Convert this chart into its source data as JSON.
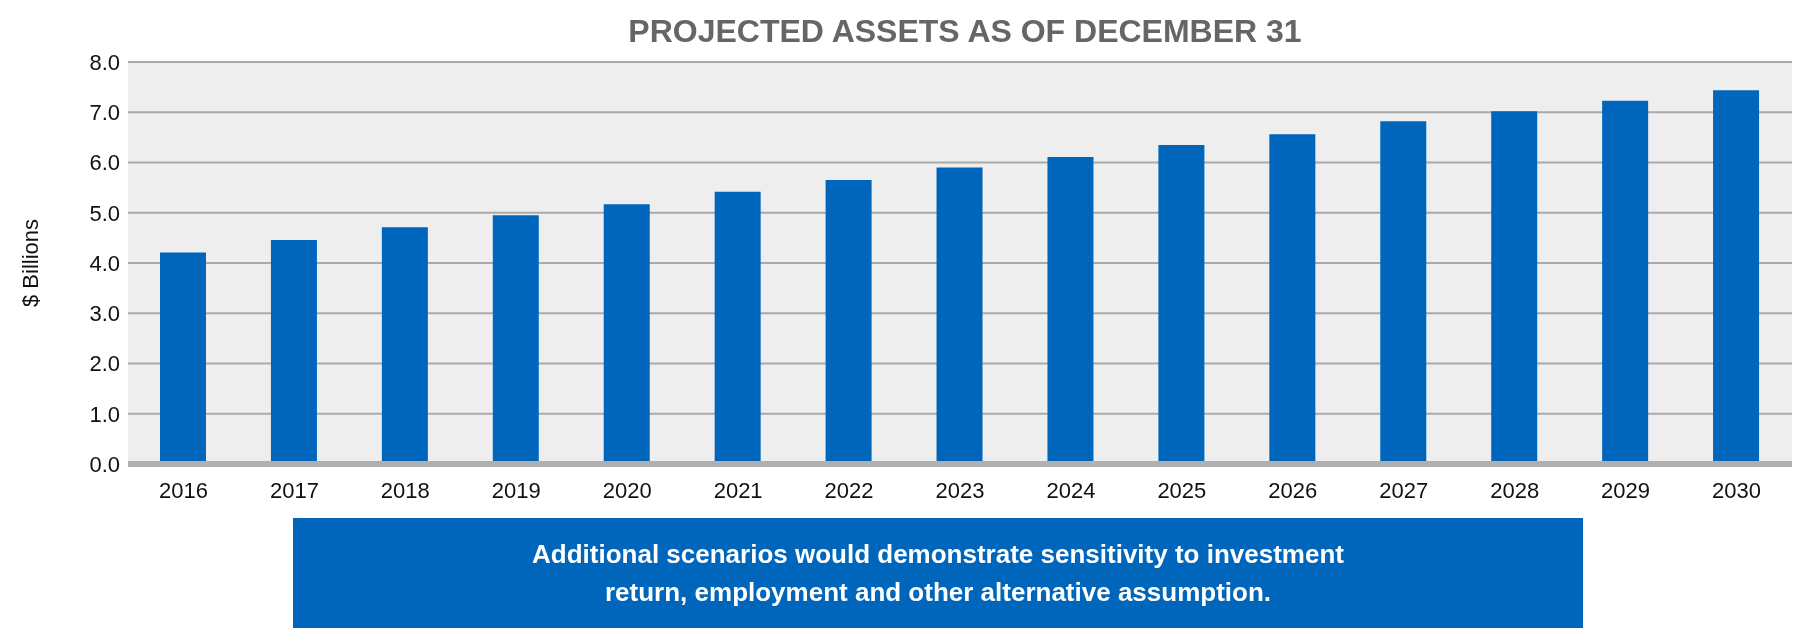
{
  "chart_data": {
    "type": "bar",
    "title": "PROJECTED ASSETS AS OF DECEMBER 31",
    "ylabel": "$ Billions",
    "categories": [
      "2016",
      "2017",
      "2018",
      "2019",
      "2020",
      "2021",
      "2022",
      "2023",
      "2024",
      "2025",
      "2026",
      "2027",
      "2028",
      "2029",
      "2030"
    ],
    "values": [
      4.21,
      4.46,
      4.71,
      4.95,
      5.17,
      5.42,
      5.65,
      5.9,
      6.11,
      6.35,
      6.56,
      6.82,
      7.02,
      7.23,
      7.44
    ],
    "color": "#0066bb",
    "ylim": [
      0,
      8
    ],
    "yticks": [
      {
        "value": 0,
        "label": "0.0"
      },
      {
        "value": 1,
        "label": "1.0"
      },
      {
        "value": 2,
        "label": "2.0"
      },
      {
        "value": 3,
        "label": "3.0"
      },
      {
        "value": 4,
        "label": "4.0"
      },
      {
        "value": 5,
        "label": "5.0"
      },
      {
        "value": 6,
        "label": "6.0"
      },
      {
        "value": 7,
        "label": "7.0"
      },
      {
        "value": 8,
        "label": "8.0"
      }
    ],
    "grid": "y",
    "legend": false,
    "annotations": [
      "Additional scenarios would demonstrate sensitivity to investment return, employment and other alternative assumption."
    ]
  }
}
